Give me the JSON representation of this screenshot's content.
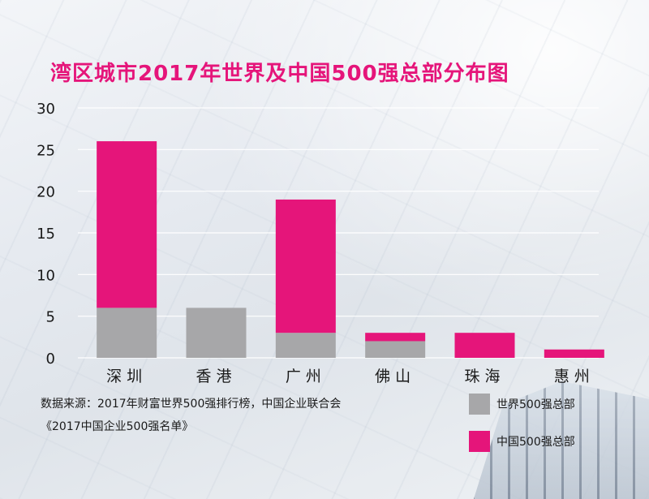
{
  "chart_data": {
    "type": "bar",
    "stacked": true,
    "title": "湾区城市2017年世界及中国500强总部分布图",
    "categories": [
      "深圳",
      "香港",
      "广州",
      "佛山",
      "珠海",
      "惠州"
    ],
    "series": [
      {
        "name": "世界500强总部",
        "values": [
          6,
          6,
          3,
          2,
          0,
          0
        ],
        "color": "#a7a7a9"
      },
      {
        "name": "中国500强总部",
        "values": [
          20,
          0,
          16,
          1,
          3,
          1
        ],
        "color": "#e5157a"
      }
    ],
    "yticks": [
      "0",
      "5",
      "10",
      "15",
      "20",
      "25",
      "30"
    ],
    "ylim": [
      0,
      30
    ],
    "grid": true,
    "legend_position": "bottom-right"
  },
  "source_lines": [
    "数据来源：2017年财富世界500强排行榜，中国企业联合会",
    "《2017中国企业500强名单》"
  ]
}
